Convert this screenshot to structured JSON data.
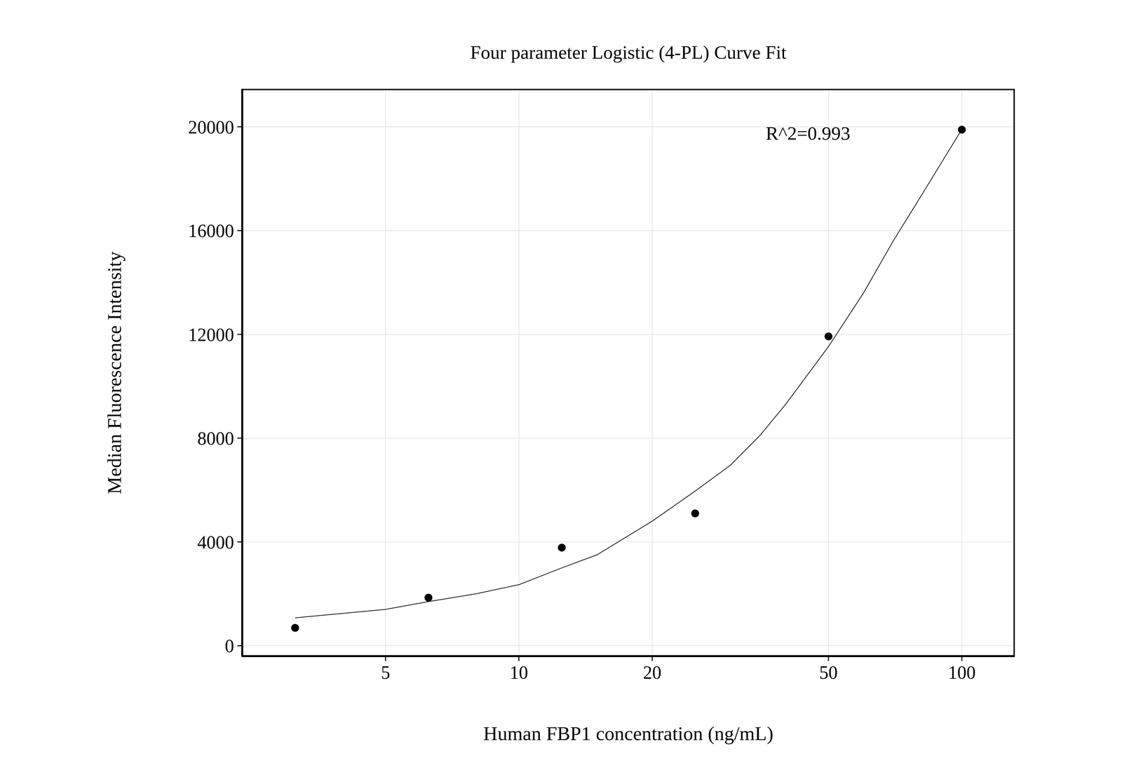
{
  "chart_data": {
    "type": "scatter",
    "title": "Four parameter Logistic (4-PL) Curve Fit",
    "x_label": "Human FBP1 concentration (ng/mL)",
    "y_label": "Median Fluorescence Intensity",
    "annotation": "R^2=0.993",
    "log": "x",
    "grid": true,
    "xlim": [
      2.37,
      131.7
    ],
    "xticks": [
      5,
      10,
      20,
      50,
      100
    ],
    "ylim": [
      -414,
      21462
    ],
    "yticks": [
      0,
      4000,
      8000,
      12000,
      16000,
      20000
    ],
    "series": [
      {
        "type": "scatter",
        "marker": "circle",
        "color": "#000000",
        "x": [
          3.125,
          6.25,
          12.5,
          25,
          50,
          100
        ],
        "values": [
          690,
          1850,
          3780,
          5100,
          11920,
          19890
        ]
      },
      {
        "type": "line",
        "line_style": "solid",
        "color": "#000000",
        "x": [
          3.125,
          5,
          6.25,
          8,
          10,
          12.5,
          15,
          20,
          25,
          30,
          35,
          40,
          50,
          60,
          70,
          80,
          100
        ],
        "values": [
          1075,
          1400,
          1700,
          2000,
          2350,
          3000,
          3500,
          4800,
          5960,
          6950,
          8100,
          9300,
          11530,
          13600,
          15600,
          17200,
          19900
        ]
      }
    ]
  }
}
